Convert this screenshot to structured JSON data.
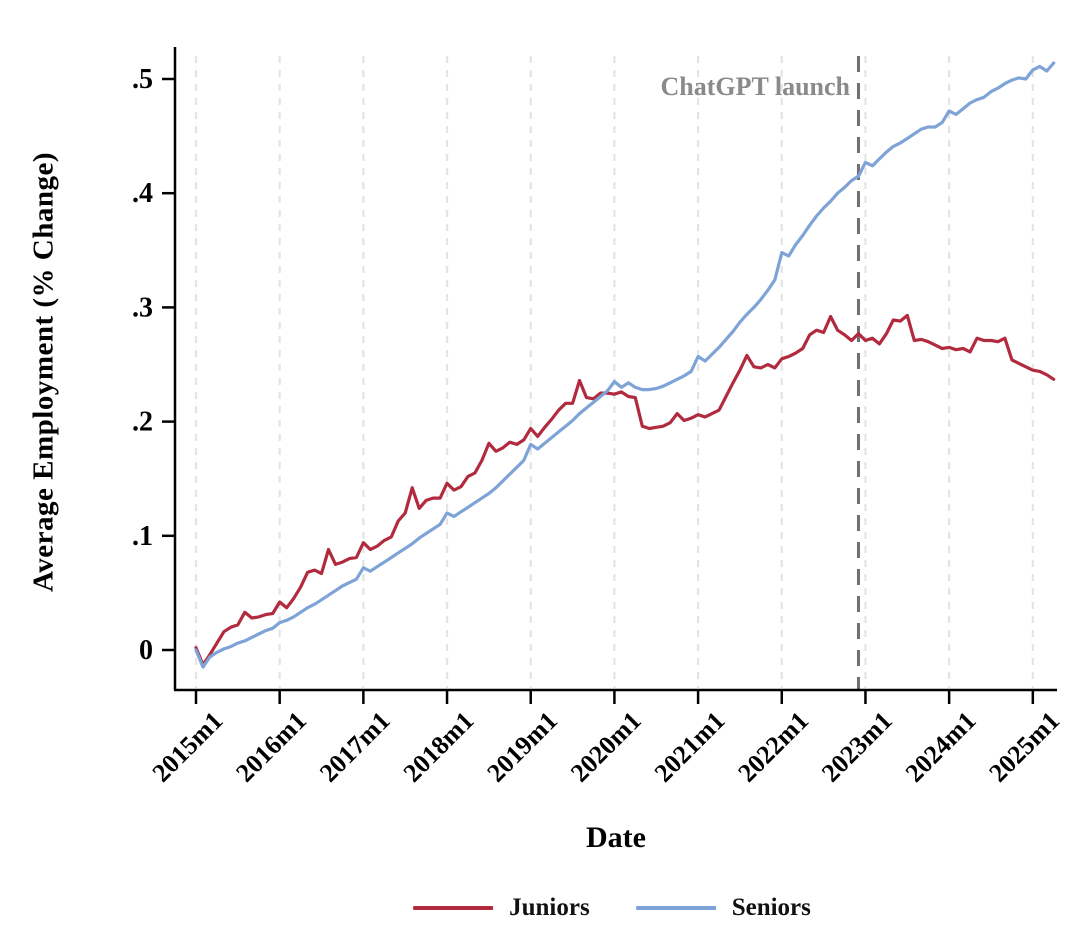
{
  "chart_data": {
    "type": "line",
    "xlabel": "Date",
    "ylabel": "Average Employment (% Change)",
    "x_frequency": "monthly",
    "x_start": "2015m1",
    "x_end": "2025m4",
    "x_tick_labels": [
      "2015m1",
      "2016m1",
      "2017m1",
      "2018m1",
      "2019m1",
      "2020m1",
      "2021m1",
      "2022m1",
      "2023m1",
      "2024m1",
      "2025m1"
    ],
    "y_tick_labels": [
      "0",
      ".1",
      ".2",
      ".3",
      ".4",
      ".5"
    ],
    "y_tick_values": [
      0,
      0.1,
      0.2,
      0.3,
      0.4,
      0.5
    ],
    "ylim": [
      -0.035,
      0.525
    ],
    "grid": "vertical-dashed",
    "legend_position": "bottom-center",
    "annotation": {
      "text": "ChatGPT launch",
      "line_at": "2022m12"
    },
    "series": [
      {
        "name": "Juniors",
        "color": "#b12a3e",
        "values": [
          0.002,
          -0.013,
          -0.004,
          0.006,
          0.016,
          0.02,
          0.022,
          0.033,
          0.028,
          0.029,
          0.031,
          0.032,
          0.042,
          0.037,
          0.045,
          0.055,
          0.068,
          0.07,
          0.067,
          0.088,
          0.075,
          0.077,
          0.08,
          0.081,
          0.094,
          0.088,
          0.091,
          0.096,
          0.099,
          0.113,
          0.12,
          0.142,
          0.124,
          0.131,
          0.133,
          0.133,
          0.146,
          0.14,
          0.143,
          0.152,
          0.155,
          0.166,
          0.181,
          0.174,
          0.177,
          0.182,
          0.18,
          0.184,
          0.194,
          0.187,
          0.195,
          0.202,
          0.21,
          0.216,
          0.216,
          0.236,
          0.221,
          0.22,
          0.225,
          0.225,
          0.224,
          0.226,
          0.222,
          0.221,
          0.196,
          0.194,
          0.195,
          0.196,
          0.199,
          0.207,
          0.201,
          0.203,
          0.206,
          0.204,
          0.207,
          0.21,
          0.222,
          0.234,
          0.245,
          0.258,
          0.248,
          0.247,
          0.25,
          0.247,
          0.255,
          0.257,
          0.26,
          0.264,
          0.276,
          0.28,
          0.278,
          0.292,
          0.28,
          0.276,
          0.271,
          0.277,
          0.271,
          0.273,
          0.268,
          0.277,
          0.289,
          0.288,
          0.293,
          0.271,
          0.272,
          0.27,
          0.267,
          0.264,
          0.265,
          0.263,
          0.264,
          0.261,
          0.273,
          0.271,
          0.271,
          0.27,
          0.273,
          0.254,
          0.251,
          0.248,
          0.245,
          0.244,
          0.241,
          0.237
        ]
      },
      {
        "name": "Seniors",
        "color": "#7ea3d7",
        "values": [
          0.0,
          -0.015,
          -0.006,
          -0.002,
          0.001,
          0.003,
          0.006,
          0.008,
          0.011,
          0.014,
          0.017,
          0.019,
          0.024,
          0.026,
          0.029,
          0.033,
          0.037,
          0.04,
          0.044,
          0.048,
          0.052,
          0.056,
          0.059,
          0.062,
          0.072,
          0.069,
          0.073,
          0.077,
          0.081,
          0.085,
          0.089,
          0.093,
          0.098,
          0.102,
          0.106,
          0.11,
          0.12,
          0.117,
          0.121,
          0.125,
          0.129,
          0.133,
          0.137,
          0.142,
          0.148,
          0.154,
          0.16,
          0.166,
          0.18,
          0.176,
          0.181,
          0.186,
          0.191,
          0.196,
          0.201,
          0.207,
          0.212,
          0.217,
          0.222,
          0.227,
          0.235,
          0.23,
          0.234,
          0.23,
          0.228,
          0.228,
          0.229,
          0.231,
          0.234,
          0.237,
          0.24,
          0.244,
          0.257,
          0.253,
          0.259,
          0.265,
          0.272,
          0.279,
          0.287,
          0.294,
          0.3,
          0.307,
          0.315,
          0.324,
          0.348,
          0.345,
          0.355,
          0.363,
          0.372,
          0.38,
          0.387,
          0.393,
          0.4,
          0.405,
          0.411,
          0.415,
          0.427,
          0.424,
          0.43,
          0.436,
          0.441,
          0.444,
          0.448,
          0.452,
          0.456,
          0.458,
          0.458,
          0.462,
          0.472,
          0.469,
          0.474,
          0.479,
          0.482,
          0.484,
          0.489,
          0.492,
          0.496,
          0.499,
          0.501,
          0.5,
          0.508,
          0.511,
          0.507,
          0.514
        ]
      }
    ],
    "colors": {
      "axis": "#000000",
      "gridline": "#e4e4e4",
      "launch_line": "#6f6f6f",
      "annotation_text": "#8a8a8a",
      "background": "#ffffff"
    }
  }
}
